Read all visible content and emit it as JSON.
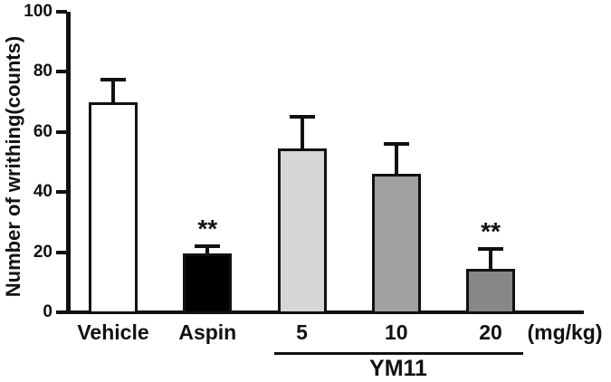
{
  "figure": {
    "background": "#ffffff",
    "ink_color": "#111111"
  },
  "chart_data": {
    "type": "bar",
    "title": "",
    "ylabel": "Number of writhing(counts)",
    "xlabel": "",
    "xlabel_unit": "(mg/kg)",
    "ylim": [
      0,
      100
    ],
    "yticks": [
      0,
      20,
      40,
      60,
      80,
      100
    ],
    "grid": false,
    "legend_position": "none",
    "categories": [
      "Vehicle",
      "Aspin",
      "5",
      "10",
      "20"
    ],
    "values": [
      70,
      19.5,
      54.5,
      46,
      14.5
    ],
    "errors_plus": [
      7.5,
      2.5,
      10.5,
      10,
      6.5
    ],
    "error_type": "sem-upper-only",
    "bar_colors": [
      "#ffffff",
      "#000000",
      "#d6d6d6",
      "#a1a1a1",
      "#878787"
    ],
    "significance": [
      "",
      "**",
      "",
      "",
      "**"
    ],
    "group_bracket": {
      "label": "YM11",
      "categories": [
        "5",
        "10",
        "20"
      ]
    }
  }
}
